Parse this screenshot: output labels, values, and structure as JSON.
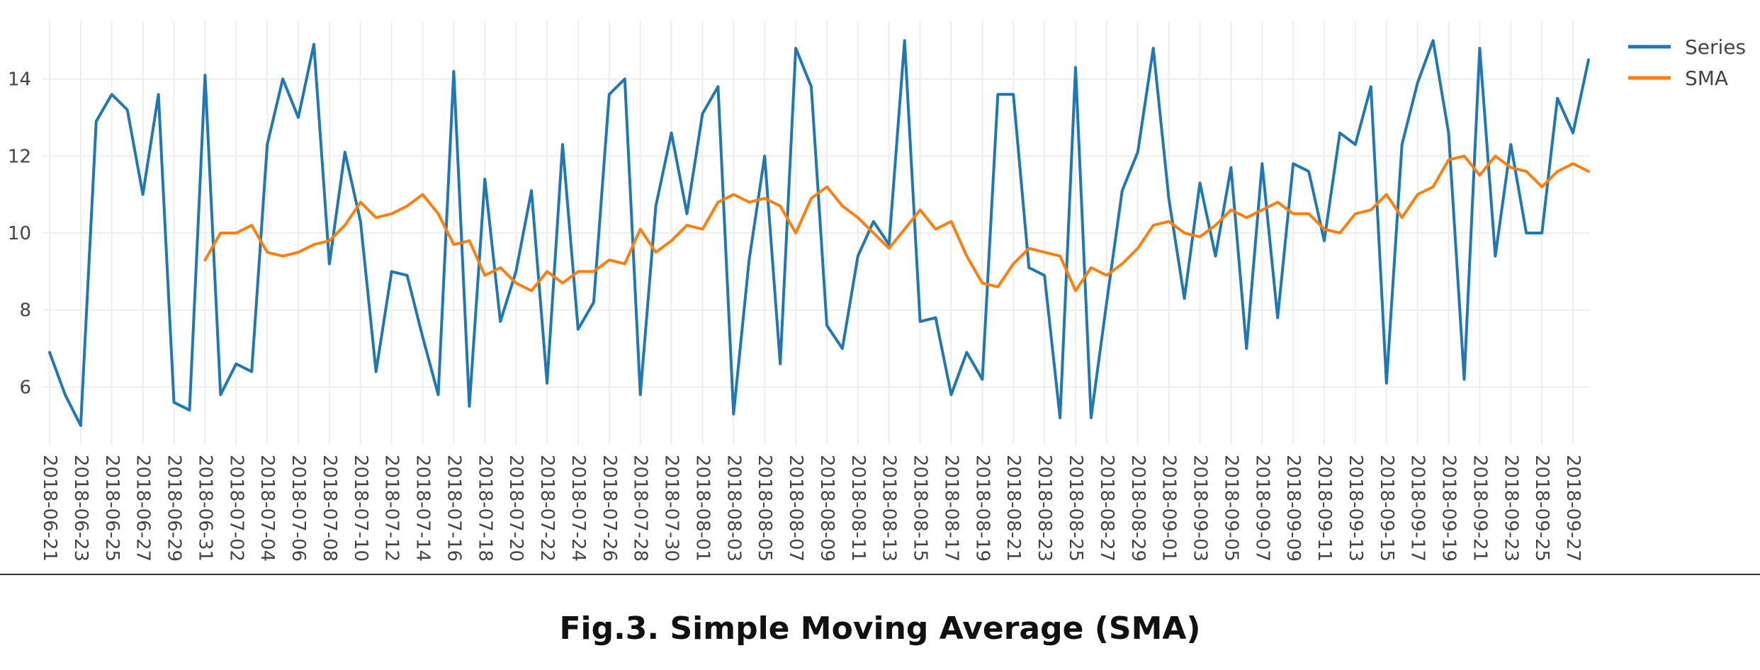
{
  "caption": "Fig.3. Simple Moving Average (SMA)",
  "colors": {
    "series": "#1f77b4",
    "sma": "#ff7f0e",
    "grid": "#eeeeee",
    "tick_text": "#444444"
  },
  "chart_data": {
    "type": "line",
    "title": "",
    "xlabel": "",
    "ylabel": "",
    "grid": true,
    "legend_position": "top-right",
    "x_tick_labels": [
      "2018-06-21",
      "2018-06-23",
      "2018-06-25",
      "2018-06-27",
      "2018-06-29",
      "2018-06-31",
      "2018-07-02",
      "2018-07-04",
      "2018-07-06",
      "2018-07-08",
      "2018-07-10",
      "2018-07-12",
      "2018-07-14",
      "2018-07-16",
      "2018-07-18",
      "2018-07-20",
      "2018-07-22",
      "2018-07-24",
      "2018-07-26",
      "2018-07-28",
      "2018-07-30",
      "2018-08-01",
      "2018-08-03",
      "2018-08-05",
      "2018-08-07",
      "2018-08-09",
      "2018-08-11",
      "2018-08-13",
      "2018-08-15",
      "2018-08-17",
      "2018-08-19",
      "2018-08-21",
      "2018-08-23",
      "2018-08-25",
      "2018-08-27",
      "2018-08-29",
      "2018-09-01",
      "2018-09-03",
      "2018-09-05",
      "2018-09-07",
      "2018-09-09",
      "2018-09-11",
      "2018-09-13",
      "2018-09-15",
      "2018-09-17",
      "2018-09-19",
      "2018-09-21",
      "2018-09-23",
      "2018-09-25",
      "2018-09-27"
    ],
    "y_ticks": [
      6,
      8,
      10,
      12,
      14
    ],
    "ylim": [
      4.5,
      15.5
    ],
    "series": [
      {
        "name": "Series",
        "values": [
          6.9,
          5.8,
          5.0,
          12.9,
          13.6,
          13.2,
          11.0,
          13.6,
          5.6,
          5.4,
          14.1,
          5.8,
          6.6,
          6.4,
          12.3,
          14.0,
          13.0,
          14.9,
          9.2,
          12.1,
          10.3,
          6.4,
          9.0,
          8.9,
          7.3,
          5.8,
          14.2,
          5.5,
          11.4,
          7.7,
          9.0,
          11.1,
          6.1,
          12.3,
          7.5,
          8.2,
          13.6,
          14.0,
          5.8,
          10.7,
          12.6,
          10.5,
          13.1,
          13.8,
          5.3,
          9.3,
          12.0,
          6.6,
          14.8,
          13.8,
          7.6,
          7.0,
          9.4,
          10.3,
          9.7,
          15.0,
          7.7,
          7.8,
          5.8,
          6.9,
          6.2,
          13.6,
          13.6,
          9.1,
          8.9,
          5.2,
          14.3,
          5.2,
          8.2,
          11.1,
          12.1,
          14.8,
          10.9,
          8.3,
          11.3,
          9.4,
          11.7,
          7.0,
          11.8,
          7.8,
          11.8,
          11.6,
          9.8,
          12.6,
          12.3,
          13.8,
          6.1,
          12.3,
          13.9,
          15.0,
          12.6,
          6.2,
          14.8,
          9.4,
          12.3,
          10.0,
          10.0,
          13.5,
          12.6,
          14.5
        ]
      },
      {
        "name": "SMA",
        "values": [
          null,
          null,
          null,
          null,
          null,
          null,
          null,
          null,
          null,
          null,
          9.3,
          10.0,
          10.0,
          10.2,
          9.5,
          9.4,
          9.5,
          9.7,
          9.8,
          10.2,
          10.8,
          10.4,
          10.5,
          10.7,
          11.0,
          10.5,
          9.7,
          9.8,
          8.9,
          9.1,
          8.7,
          8.5,
          9.0,
          8.7,
          9.0,
          9.0,
          9.3,
          9.2,
          10.1,
          9.5,
          9.8,
          10.2,
          10.1,
          10.8,
          11.0,
          10.8,
          10.9,
          10.7,
          10.0,
          10.9,
          11.2,
          10.7,
          10.4,
          10.0,
          9.6,
          10.1,
          10.6,
          10.1,
          10.3,
          9.4,
          8.7,
          8.6,
          9.2,
          9.6,
          9.5,
          9.4,
          8.5,
          9.1,
          8.9,
          9.2,
          9.6,
          10.2,
          10.3,
          10.0,
          9.9,
          10.2,
          10.6,
          10.4,
          10.6,
          10.8,
          10.5,
          10.5,
          10.1,
          10.0,
          10.5,
          10.6,
          11.0,
          10.4,
          11.0,
          11.2,
          11.9,
          12.0,
          11.5,
          12.0,
          11.7,
          11.6,
          11.2,
          11.6,
          11.8,
          11.6
        ]
      }
    ]
  }
}
